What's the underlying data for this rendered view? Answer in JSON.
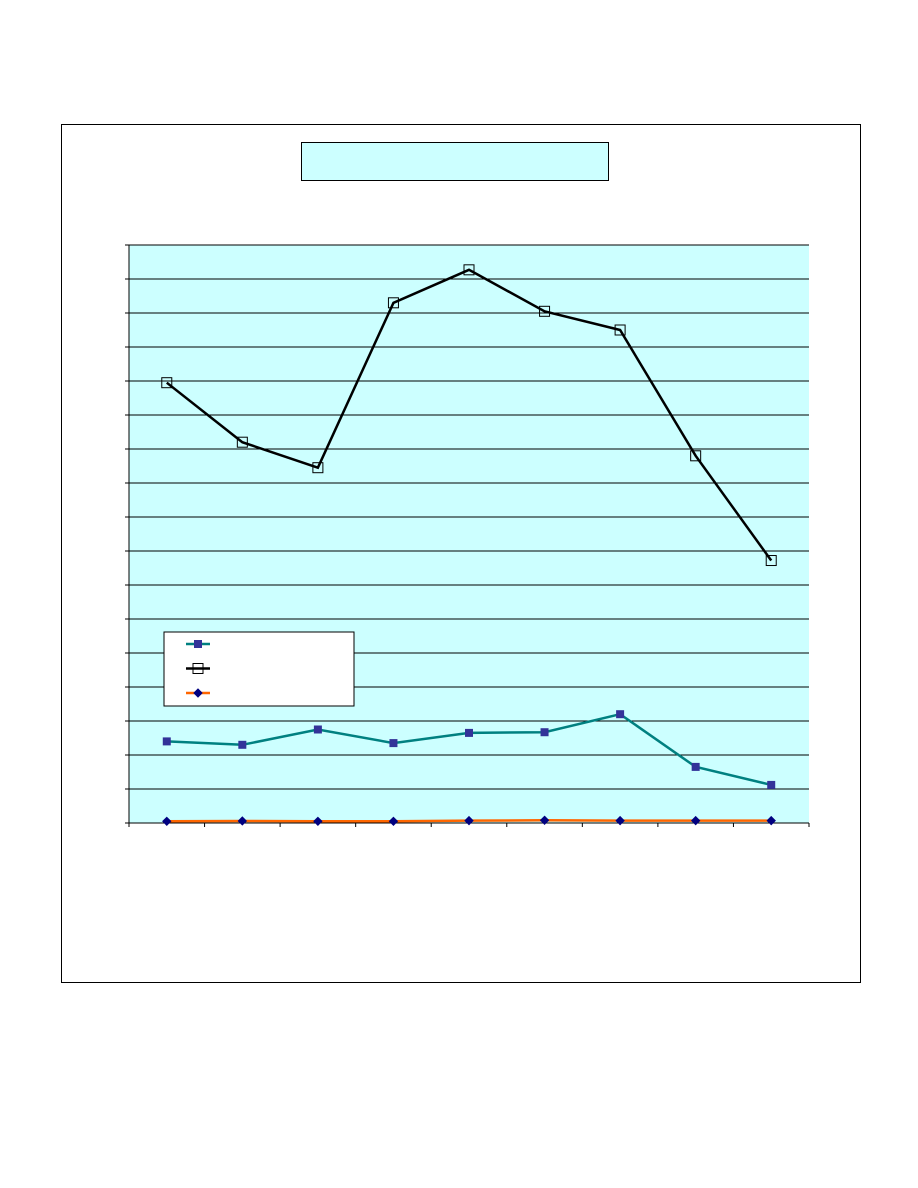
{
  "chart_data": {
    "type": "line",
    "title": "",
    "xlabel": "",
    "ylabel": "",
    "categories": [
      "",
      "",
      "",
      "",
      "",
      "",
      "",
      "",
      ""
    ],
    "ylim": [
      0,
      17
    ],
    "grid": true,
    "legend_position": "bottom-left",
    "plot_background": "#ccffff",
    "series": [
      {
        "color": "#008080",
        "marker": "filled-square",
        "marker_color": "#333399",
        "values": [
          2.4,
          2.3,
          2.75,
          2.35,
          2.65,
          2.67,
          3.2,
          1.65,
          1.12
        ]
      },
      {
        "color": "#000000",
        "marker": "open-square",
        "values": [
          12.95,
          11.2,
          10.45,
          15.3,
          16.27,
          15.05,
          14.5,
          10.8,
          7.72
        ]
      },
      {
        "color": "#ff6600",
        "marker": "diamond",
        "marker_color": "#000080",
        "values": [
          0.05,
          0.06,
          0.05,
          0.05,
          0.07,
          0.08,
          0.07,
          0.07,
          0.07
        ]
      }
    ]
  }
}
